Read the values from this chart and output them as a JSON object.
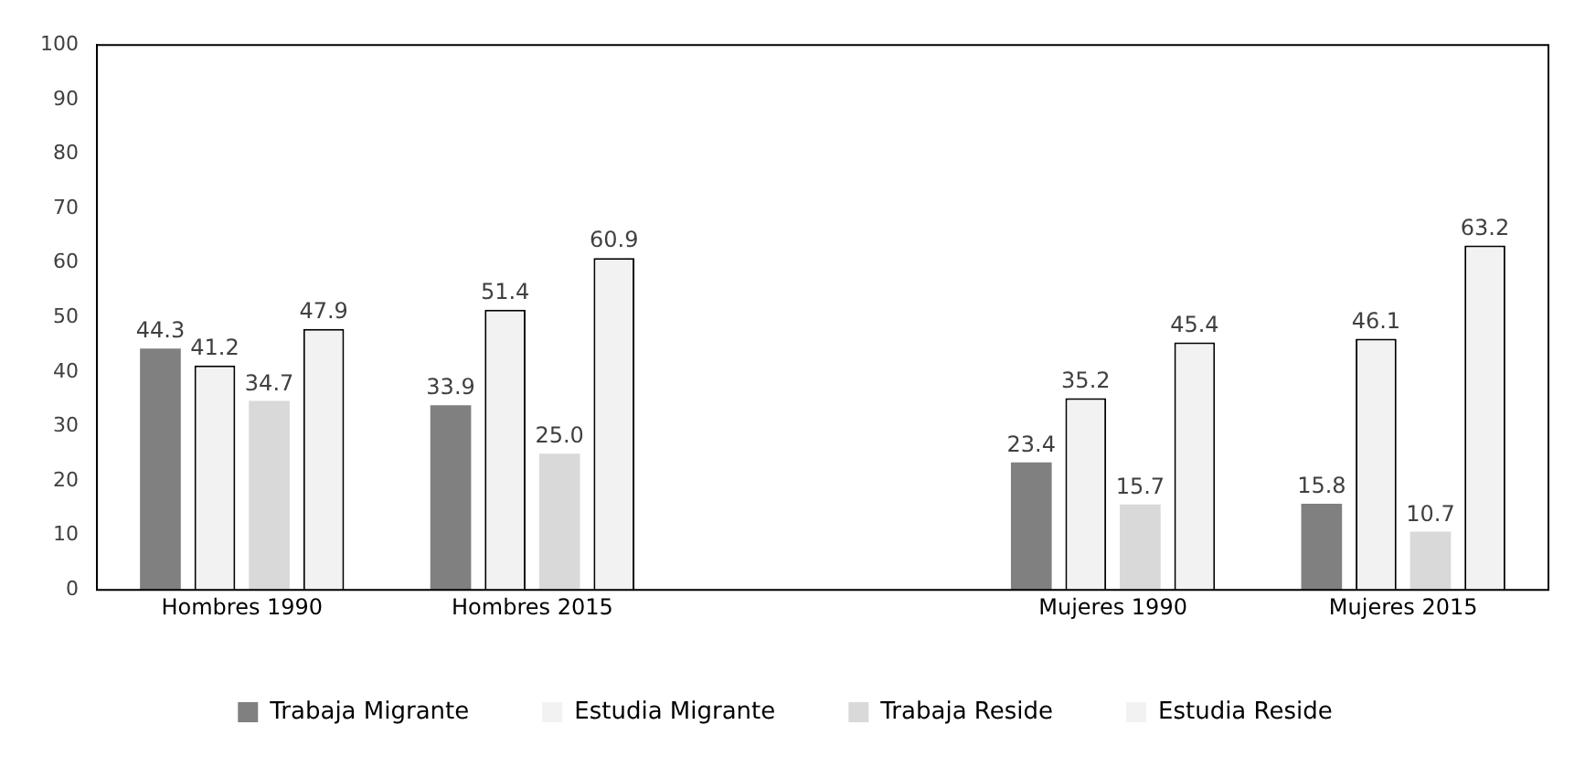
{
  "chart_data": {
    "type": "bar",
    "categories": [
      "Hombres 1990",
      "Hombres 2015",
      null,
      "Mujeres 1990",
      "Mujeres 2015"
    ],
    "series": [
      {
        "name": "Trabaja Migrante",
        "color": "#808080",
        "values": [
          44.3,
          33.9,
          null,
          23.4,
          15.8
        ],
        "value_labels": [
          "44.3",
          "33.9",
          null,
          "23.4",
          "15.8"
        ]
      },
      {
        "name": "Estudia Migrante",
        "color": "#f2f2f2",
        "values": [
          41.2,
          51.4,
          null,
          35.2,
          46.1
        ],
        "value_labels": [
          "41.2",
          "51.4",
          null,
          "35.2",
          "46.1"
        ]
      },
      {
        "name": "Trabaja Reside",
        "color": "#d9d9d9",
        "values": [
          34.7,
          25.0,
          null,
          15.7,
          10.7
        ],
        "value_labels": [
          "34.7",
          "25.0",
          null,
          "15.7",
          "10.7"
        ]
      },
      {
        "name": "Estudia Reside",
        "color": "#f2f2f2",
        "values": [
          47.9,
          60.9,
          null,
          45.4,
          63.2
        ],
        "value_labels": [
          "47.9",
          "60.9",
          null,
          "45.4",
          "63.2"
        ]
      }
    ],
    "ylim": [
      0,
      100
    ],
    "yticks": [
      0,
      10,
      20,
      30,
      40,
      50,
      60,
      70,
      80,
      90,
      100
    ],
    "grid": false,
    "legend": "bottom"
  }
}
